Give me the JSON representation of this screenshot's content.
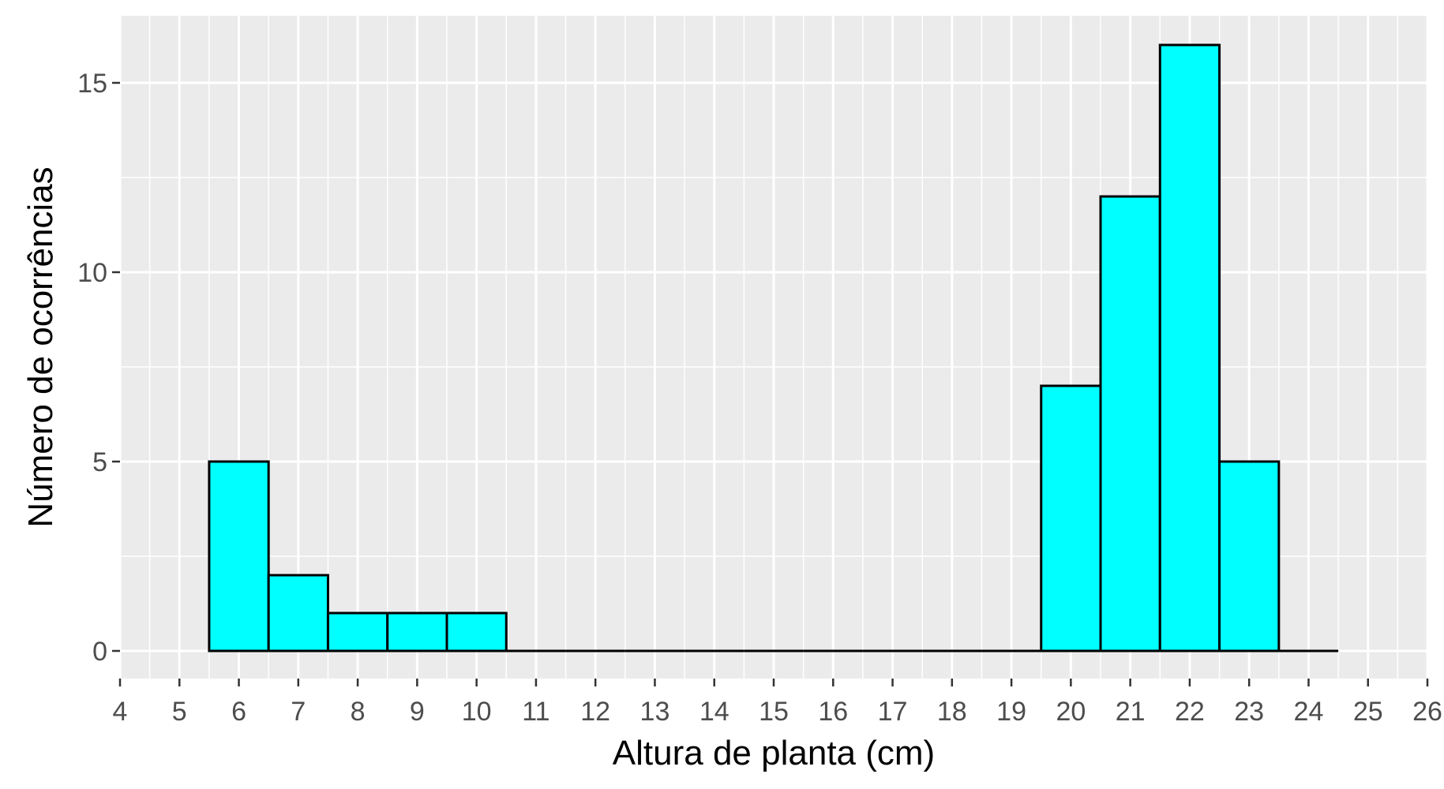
{
  "chart_data": {
    "type": "bar",
    "subtype": "histogram",
    "xlabel": "Altura de planta (cm)",
    "ylabel": "Número de ocorrências",
    "xlim": [
      4,
      26
    ],
    "ylim": [
      0,
      16
    ],
    "x_ticks": [
      "4",
      "5",
      "6",
      "7",
      "8",
      "9",
      "10",
      "11",
      "12",
      "13",
      "14",
      "15",
      "16",
      "17",
      "18",
      "19",
      "20",
      "21",
      "22",
      "23",
      "24",
      "25",
      "26"
    ],
    "y_ticks": [
      "0",
      "5",
      "10",
      "15"
    ],
    "bin_width": 1,
    "bins": [
      {
        "center": 6,
        "count": 5
      },
      {
        "center": 7,
        "count": 2
      },
      {
        "center": 8,
        "count": 1
      },
      {
        "center": 9,
        "count": 1
      },
      {
        "center": 10,
        "count": 1
      },
      {
        "center": 11,
        "count": 0
      },
      {
        "center": 12,
        "count": 0
      },
      {
        "center": 13,
        "count": 0
      },
      {
        "center": 14,
        "count": 0
      },
      {
        "center": 15,
        "count": 0
      },
      {
        "center": 16,
        "count": 0
      },
      {
        "center": 17,
        "count": 0
      },
      {
        "center": 18,
        "count": 0
      },
      {
        "center": 19,
        "count": 0
      },
      {
        "center": 20,
        "count": 7
      },
      {
        "center": 21,
        "count": 12
      },
      {
        "center": 22,
        "count": 16
      },
      {
        "center": 23,
        "count": 5
      },
      {
        "center": 24,
        "count": 0
      }
    ],
    "grid": true,
    "colors": {
      "bar_fill": "#00FFFF",
      "bar_outline": "#000000",
      "panel_background": "#EBEBEB",
      "grid": "#FFFFFF"
    }
  }
}
